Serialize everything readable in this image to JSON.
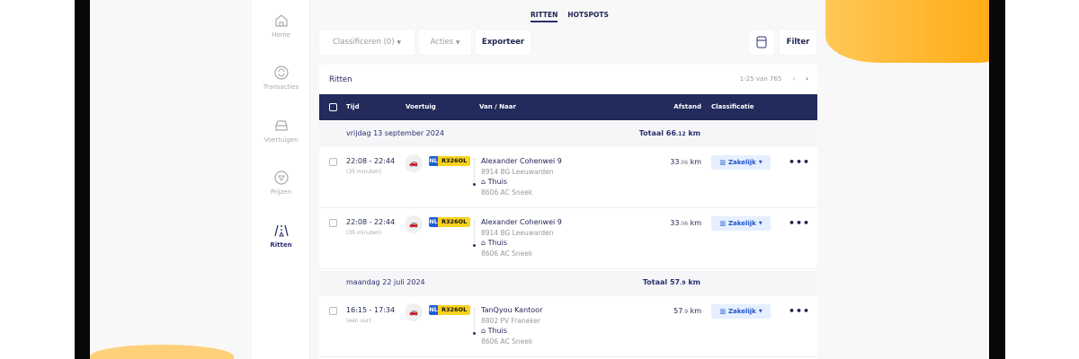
{
  "colors": {
    "navy": "#232a5c",
    "accent": "#ffa90f",
    "badge": "#e6efff",
    "plate": "#f9d21d"
  },
  "sidebar": {
    "items": [
      {
        "label": "Home",
        "icon": "home-icon"
      },
      {
        "label": "Transacties",
        "icon": "transactions-icon"
      },
      {
        "label": "Voertuigen",
        "icon": "car-icon"
      },
      {
        "label": "Prijzen",
        "icon": "price-icon"
      },
      {
        "label": "Ritten",
        "icon": "road-icon",
        "active": true
      }
    ]
  },
  "tabs": [
    {
      "label": "RITTEN",
      "active": true
    },
    {
      "label": "HOTSPOTS"
    }
  ],
  "toolbar": {
    "classify": "Classificeren (0)",
    "actions": "Acties",
    "export": "Exporteer",
    "filter": "Filter"
  },
  "card": {
    "title": "Ritten",
    "pager": "1-25 van 765"
  },
  "columns": {
    "time": "Tijd",
    "vehicle": "Voertuig",
    "route": "Van / Naar",
    "distance": "Afstand",
    "classification": "Classificatie"
  },
  "groups": [
    {
      "date": "vrijdag 13 september 2024",
      "total": "Totaal 66",
      "total_dec": ".12",
      "unit": " km"
    },
    {
      "date": "maandag 22 juli 2024",
      "total": "Totaal 57",
      "total_dec": ".9",
      "unit": " km"
    }
  ],
  "rows": [
    {
      "time": "22:08 - 22:44",
      "duration": "(35 minuten)",
      "country": "NL",
      "plate": "R326OL",
      "from": "Alexander Cohenwei 9",
      "from_sub": "8914 BG Leeuwarden",
      "to": "Thuis",
      "to_sub": "8606 AC Sneek",
      "dist": "33",
      "dist_dec": ".06",
      "unit": " km",
      "class": "Zakelijk"
    },
    {
      "time": "22:08 - 22:44",
      "duration": "(35 minuten)",
      "country": "NL",
      "plate": "R326OL",
      "from": "Alexander Cohenwei 9",
      "from_sub": "8914 BG Leeuwarden",
      "to": "Thuis",
      "to_sub": "8606 AC Sneek",
      "dist": "33",
      "dist_dec": ".06",
      "unit": " km",
      "class": "Zakelijk"
    },
    {
      "time": "16:15 - 17:34",
      "duration": "(een uur)",
      "country": "NL",
      "plate": "R326OL",
      "from": "TanQyou Kantoor",
      "from_sub": "8802 PV Franeker",
      "to": "Thuis",
      "to_sub": "8606 AC Sneek",
      "dist": "57",
      "dist_dec": ".9",
      "unit": " km",
      "class": "Zakelijk"
    }
  ]
}
